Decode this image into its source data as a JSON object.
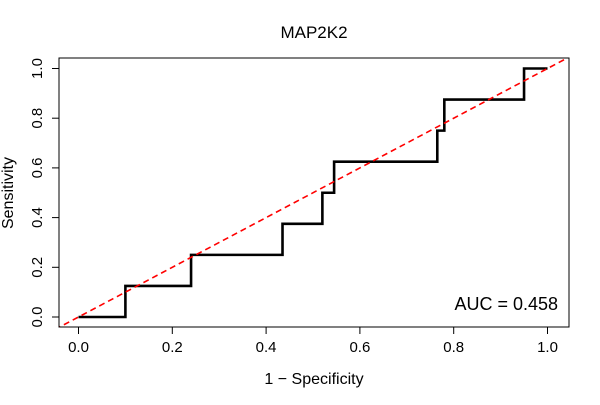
{
  "chart_data": {
    "type": "line",
    "title": "MAP2K2",
    "xlabel": "1 − Specificity",
    "ylabel": "Sensitivity",
    "xlim": [
      0,
      1
    ],
    "ylim": [
      0,
      1
    ],
    "x_ticks": [
      0.0,
      0.2,
      0.4,
      0.6,
      0.8,
      1.0
    ],
    "y_ticks": [
      0.0,
      0.2,
      0.4,
      0.6,
      0.8,
      1.0
    ],
    "x_tick_labels": [
      "0.0",
      "0.2",
      "0.4",
      "0.6",
      "0.8",
      "1.0"
    ],
    "y_tick_labels": [
      "0.0",
      "0.2",
      "0.4",
      "0.6",
      "0.8",
      "1.0"
    ],
    "annotation": "AUC = 0.458",
    "grid": false,
    "series": [
      {
        "color": "#000000",
        "points": [
          [
            0.0,
            0.0
          ],
          [
            0.1,
            0.0
          ],
          [
            0.1,
            0.125
          ],
          [
            0.24,
            0.125
          ],
          [
            0.24,
            0.25
          ],
          [
            0.435,
            0.25
          ],
          [
            0.435,
            0.375
          ],
          [
            0.52,
            0.375
          ],
          [
            0.52,
            0.5
          ],
          [
            0.545,
            0.5
          ],
          [
            0.545,
            0.625
          ],
          [
            0.765,
            0.625
          ],
          [
            0.765,
            0.75
          ],
          [
            0.78,
            0.75
          ],
          [
            0.78,
            0.875
          ],
          [
            0.95,
            0.875
          ],
          [
            0.95,
            1.0
          ],
          [
            1.0,
            1.0
          ]
        ]
      },
      {
        "color": "#ff0000",
        "dashed": true,
        "points": [
          [
            -0.05,
            -0.05
          ],
          [
            1.05,
            1.05
          ]
        ]
      }
    ]
  }
}
